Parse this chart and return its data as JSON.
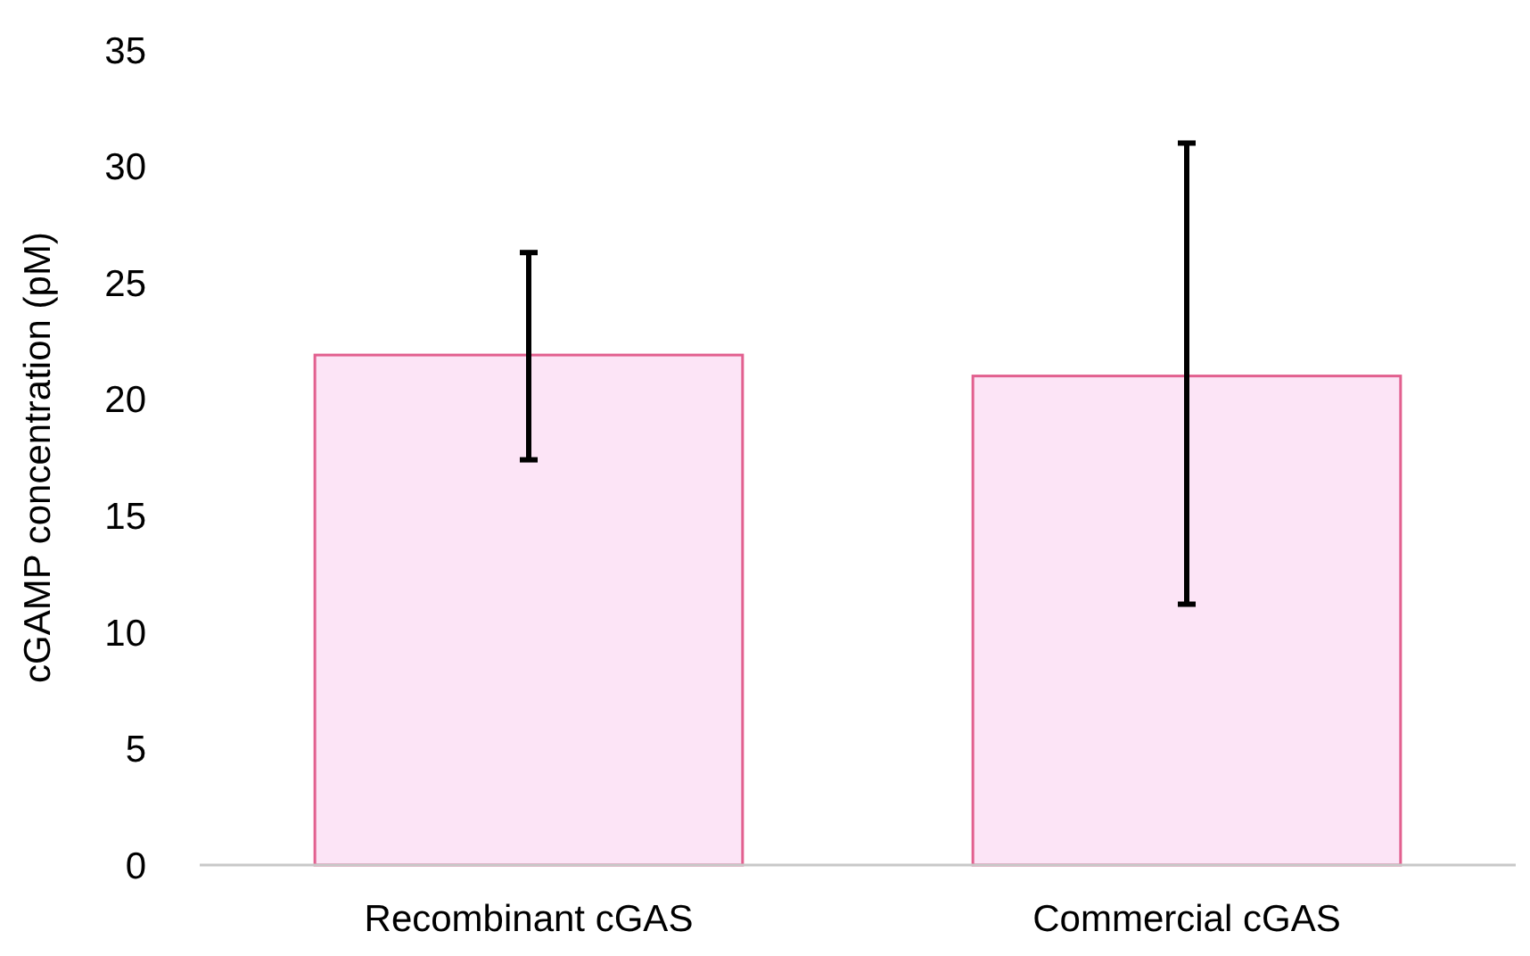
{
  "chart_data": {
    "type": "bar",
    "ylabel": "cGAMP concentration (pM)",
    "categories": [
      "Recombinant cGAS",
      "Commercial cGAS"
    ],
    "series": [
      {
        "color": "#fce4f6",
        "values": [
          21.9,
          21.0
        ],
        "errors": [
          [
            17.4,
            26.3
          ],
          [
            11.2,
            31.0
          ]
        ]
      }
    ],
    "ylim": [
      0,
      35
    ],
    "yticks": [
      0,
      5,
      10,
      15,
      20,
      25,
      30,
      35
    ],
    "grid": false
  }
}
